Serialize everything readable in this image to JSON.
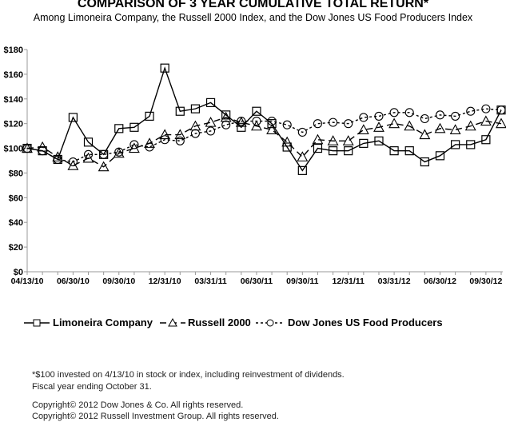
{
  "chart_data": {
    "type": "line",
    "title": "COMPARISON OF 3 YEAR CUMULATIVE TOTAL RETURN*",
    "subtitle": "Among Limoneira Company, the Russell 2000 Index, and the Dow Jones US Food Producers Index",
    "xlabel": "",
    "ylabel": "",
    "ylim": [
      0,
      180
    ],
    "yticks": [
      "$0",
      "$20",
      "$40",
      "$60",
      "$80",
      "$100",
      "$120",
      "$140",
      "$160",
      "$180"
    ],
    "categories": [
      "04/13/10",
      "",
      "",
      "06/30/10",
      "",
      "",
      "09/30/10",
      "",
      "",
      "12/31/10",
      "",
      "",
      "03/31/11",
      "",
      "",
      "06/30/11",
      "",
      "",
      "09/30/11",
      "",
      "",
      "12/31/11",
      "",
      "",
      "03/31/12",
      "",
      "",
      "06/30/12",
      "",
      "",
      "09/30/12",
      ""
    ],
    "grid": false,
    "legend_position": "bottom",
    "series": [
      {
        "name": "Limoneira Company",
        "marker": "square",
        "style": "solid",
        "values": [
          100,
          98,
          91,
          125,
          105,
          95,
          116,
          117,
          126,
          165,
          130,
          132,
          137,
          127,
          117,
          130,
          120,
          101,
          82,
          100,
          98,
          98,
          104,
          106,
          98,
          98,
          89,
          94,
          103,
          103,
          107,
          131
        ]
      },
      {
        "name": "Russell 2000",
        "marker": "triangle",
        "style": "dashed",
        "values": [
          100,
          101,
          93,
          86,
          92,
          85,
          96,
          100,
          104,
          111,
          111,
          118,
          121,
          125,
          121,
          118,
          115,
          105,
          93,
          107,
          106,
          106,
          115,
          117,
          120,
          118,
          111,
          116,
          115,
          118,
          122,
          120
        ]
      },
      {
        "name": "Dow Jones US Food Producers",
        "marker": "circle",
        "style": "dotted",
        "values": [
          100,
          98,
          91,
          89,
          95,
          95,
          97,
          103,
          101,
          107,
          106,
          112,
          114,
          119,
          122,
          122,
          122,
          119,
          113,
          120,
          121,
          120,
          125,
          126,
          129,
          129,
          124,
          127,
          126,
          130,
          132,
          131
        ]
      }
    ]
  },
  "legend": {
    "limoneira": "Limoneira Company",
    "russell": "Russell 2000",
    "dowjones": "Dow Jones US Food Producers"
  },
  "footnotes": {
    "line1": "*$100 invested on 4/13/10 in stock or index, including reinvestment of dividends.",
    "line2": "Fiscal year ending October 31.",
    "copyright1": "Copyright© 2012 Dow Jones & Co. All rights reserved.",
    "copyright2": "Copyright© 2012 Russell Investment Group. All rights reserved."
  }
}
